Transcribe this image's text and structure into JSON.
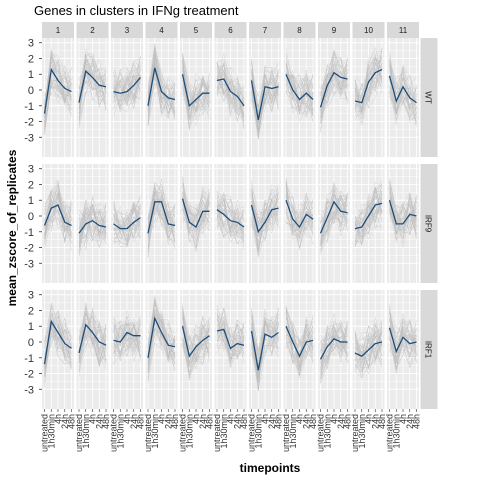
{
  "chart_data": {
    "type": "line",
    "title": "Genes in clusters in IFNg treatment",
    "xlabel": "timepoints",
    "ylabel": "mean_zscore_of_replicates",
    "x": [
      "untreated",
      "1h30min",
      "4h",
      "24h",
      "48h"
    ],
    "ylim": [
      -3.3,
      3.3
    ],
    "yticks": [
      -3,
      -2,
      -1,
      0,
      1,
      2,
      3
    ],
    "grid": true,
    "cluster_labels": [
      "1",
      "2",
      "3",
      "4",
      "5",
      "6",
      "7",
      "8",
      "9",
      "10",
      "11"
    ],
    "genotypes": [
      "WT",
      "IRF9",
      "IRF1"
    ],
    "mean_line_color": "#1f4e79",
    "background_lines_color": "#bdbdbd",
    "panel_background": "#ebebeb",
    "strip_background": "#d9d9d9",
    "series": [
      {
        "genotype": "WT",
        "cluster": "1",
        "values": [
          -1.5,
          1.3,
          0.6,
          0.1,
          -0.1
        ]
      },
      {
        "genotype": "WT",
        "cluster": "2",
        "values": [
          -0.8,
          1.2,
          0.8,
          0.3,
          0.2
        ]
      },
      {
        "genotype": "WT",
        "cluster": "3",
        "values": [
          -0.1,
          -0.2,
          -0.1,
          0.3,
          0.8
        ]
      },
      {
        "genotype": "WT",
        "cluster": "4",
        "values": [
          -1.0,
          1.4,
          -0.1,
          -0.5,
          -0.6
        ]
      },
      {
        "genotype": "WT",
        "cluster": "5",
        "values": [
          1.0,
          -1.0,
          -0.6,
          -0.2,
          -0.2
        ]
      },
      {
        "genotype": "WT",
        "cluster": "6",
        "values": [
          0.6,
          0.7,
          -0.1,
          -0.4,
          -1.0
        ]
      },
      {
        "genotype": "WT",
        "cluster": "7",
        "values": [
          0.6,
          -1.9,
          0.2,
          0.1,
          0.2
        ]
      },
      {
        "genotype": "WT",
        "cluster": "8",
        "values": [
          1.0,
          0.0,
          -0.6,
          -0.2,
          -0.6
        ]
      },
      {
        "genotype": "WT",
        "cluster": "9",
        "values": [
          -1.1,
          0.3,
          1.1,
          0.8,
          0.7
        ]
      },
      {
        "genotype": "WT",
        "cluster": "10",
        "values": [
          -0.7,
          -0.8,
          0.5,
          1.1,
          1.3
        ]
      },
      {
        "genotype": "WT",
        "cluster": "11",
        "values": [
          0.9,
          -0.7,
          0.2,
          -0.5,
          -0.8
        ]
      },
      {
        "genotype": "IRF9",
        "cluster": "1",
        "values": [
          -0.6,
          0.5,
          0.7,
          -0.4,
          -0.6
        ]
      },
      {
        "genotype": "IRF9",
        "cluster": "2",
        "values": [
          -1.1,
          -0.5,
          -0.3,
          -0.6,
          -0.7
        ]
      },
      {
        "genotype": "IRF9",
        "cluster": "3",
        "values": [
          -0.5,
          -0.8,
          -0.8,
          -0.4,
          -0.1
        ]
      },
      {
        "genotype": "IRF9",
        "cluster": "4",
        "values": [
          -1.1,
          0.9,
          0.9,
          -0.5,
          -0.6
        ]
      },
      {
        "genotype": "IRF9",
        "cluster": "5",
        "values": [
          1.1,
          -0.4,
          -0.7,
          0.3,
          0.3
        ]
      },
      {
        "genotype": "IRF9",
        "cluster": "6",
        "values": [
          0.4,
          0.1,
          -0.3,
          -0.4,
          -0.7
        ]
      },
      {
        "genotype": "IRF9",
        "cluster": "7",
        "values": [
          0.7,
          -1.0,
          -0.4,
          0.4,
          0.5
        ]
      },
      {
        "genotype": "IRF9",
        "cluster": "8",
        "values": [
          1.0,
          -0.2,
          -0.7,
          0.1,
          -0.2
        ]
      },
      {
        "genotype": "IRF9",
        "cluster": "9",
        "values": [
          -1.1,
          -0.1,
          0.9,
          0.3,
          0.2
        ]
      },
      {
        "genotype": "IRF9",
        "cluster": "10",
        "values": [
          -0.8,
          -0.7,
          0.0,
          0.7,
          0.8
        ]
      },
      {
        "genotype": "IRF9",
        "cluster": "11",
        "values": [
          1.0,
          -0.5,
          -0.5,
          0.1,
          0.0
        ]
      },
      {
        "genotype": "IRF1",
        "cluster": "1",
        "values": [
          -1.4,
          1.3,
          0.6,
          -0.1,
          -0.4
        ]
      },
      {
        "genotype": "IRF1",
        "cluster": "2",
        "values": [
          -0.7,
          1.1,
          0.6,
          0.0,
          -0.2
        ]
      },
      {
        "genotype": "IRF1",
        "cluster": "3",
        "values": [
          0.1,
          0.0,
          0.6,
          0.4,
          0.4
        ]
      },
      {
        "genotype": "IRF1",
        "cluster": "4",
        "values": [
          -1.0,
          1.5,
          0.6,
          -0.2,
          -0.3
        ]
      },
      {
        "genotype": "IRF1",
        "cluster": "5",
        "values": [
          1.0,
          -0.9,
          -0.3,
          0.1,
          0.4
        ]
      },
      {
        "genotype": "IRF1",
        "cluster": "6",
        "values": [
          0.7,
          0.8,
          -0.4,
          -0.1,
          -0.2
        ]
      },
      {
        "genotype": "IRF1",
        "cluster": "7",
        "values": [
          0.7,
          -1.8,
          0.5,
          0.3,
          0.6
        ]
      },
      {
        "genotype": "IRF1",
        "cluster": "8",
        "values": [
          1.0,
          0.0,
          -0.9,
          0.0,
          0.1
        ]
      },
      {
        "genotype": "IRF1",
        "cluster": "9",
        "values": [
          -1.1,
          -0.3,
          0.2,
          0.0,
          0.0
        ]
      },
      {
        "genotype": "IRF1",
        "cluster": "10",
        "values": [
          -0.7,
          -0.9,
          -0.5,
          -0.1,
          0.0
        ]
      },
      {
        "genotype": "IRF1",
        "cluster": "11",
        "values": [
          0.9,
          -0.6,
          0.3,
          -0.1,
          0.0
        ]
      }
    ]
  }
}
